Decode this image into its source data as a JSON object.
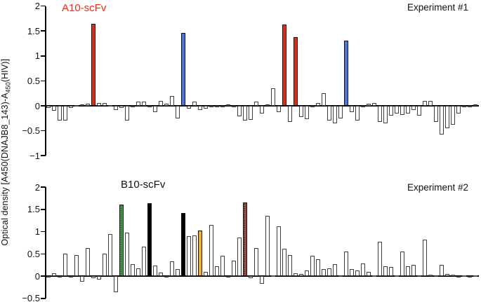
{
  "figure": {
    "ylabel_prefix": "Optical density [A450(DNAJB8_143)-A",
    "ylabel_sub": "450",
    "ylabel_suffix": "(HIV)]"
  },
  "palette": {
    "red": "#e8290c",
    "blue": "#4377e6",
    "black": "#000000",
    "orange": "#f4b50a",
    "green_hatch": {
      "fill": "#3b9b45",
      "dot": "#1c5222"
    },
    "dark_red_hatch": {
      "fill": "#9c4a42",
      "dot": "#260c09"
    },
    "white_bar_fill": "#ffffff",
    "gray_bar_fill": "#b4b4b4",
    "bar_outline": "#3d3d3d",
    "axis": "#000000",
    "title_red": "#f92a12",
    "text": "#111111"
  },
  "chart_data": [
    {
      "type": "bar",
      "title": "A10-scFv",
      "title_color_key": "title_red",
      "panel_label": "Experiment #1",
      "ylabel": "Optical density [A450(DNAJB8_143)-A450(HIV)]",
      "ylim": [
        -1,
        2
      ],
      "yticks": [
        2,
        1.5,
        1,
        0.5,
        0,
        -0.5,
        -1
      ],
      "grid": false,
      "legend": "none",
      "values": [
        -0.04,
        -0.1,
        -0.3,
        -0.3,
        -0.04,
        0.01,
        0.03,
        0.04,
        1.65,
        0.05,
        0.05,
        0.02,
        -0.09,
        -0.04,
        -0.29,
        -0.03,
        0.08,
        0.08,
        -0.03,
        -0.13,
        0.1,
        0.04,
        0.2,
        -0.25,
        1.46,
        -0.06,
        0.09,
        -0.09,
        -0.06,
        -0.02,
        -0.02,
        -0.01,
        0.03,
        -0.02,
        -0.21,
        -0.3,
        -0.28,
        0.09,
        -0.16,
        0.03,
        0.35,
        -0.12,
        1.63,
        -0.33,
        1.38,
        -0.22,
        -0.27,
        -0.02,
        0.05,
        0.25,
        -0.3,
        -0.35,
        -0.25,
        1.3,
        -0.13,
        -0.3,
        0.0,
        0.04,
        0.05,
        -0.33,
        -0.35,
        -0.2,
        -0.15,
        -0.18,
        -0.15,
        -0.08,
        -0.2,
        0.1,
        0.1,
        -0.32,
        -0.57,
        -0.45,
        -0.38,
        -0.15,
        -0.03,
        -0.03,
        0.03
      ],
      "highlighted_bars": {
        "8": "red",
        "24": "blue",
        "42": "red",
        "44": "red",
        "53": "blue"
      },
      "gray_bars": [
        57
      ]
    },
    {
      "type": "bar",
      "title": "B10-scFv",
      "title_color_key": "text",
      "panel_label": "Experiment #2",
      "ylabel": "Optical density [A450(DNAJB8_143)-A450(HIV)]",
      "ylim": [
        -0.5,
        2
      ],
      "yticks": [
        2,
        1.5,
        1,
        0.5,
        0,
        -0.5
      ],
      "grid": false,
      "legend": "none",
      "values": [
        -0.02,
        0.06,
        -0.03,
        0.5,
        -0.03,
        0.47,
        -0.13,
        0.63,
        -0.04,
        -0.08,
        0.5,
        0.95,
        -0.37,
        1.61,
        0.97,
        0.27,
        0.17,
        0.66,
        1.64,
        0.24,
        0.08,
        -0.02,
        0.33,
        0.15,
        1.42,
        0.9,
        0.92,
        1.03,
        0.1,
        1.15,
        0.22,
        0.45,
        -0.02,
        0.35,
        0.87,
        1.65,
        -0.04,
        0.63,
        -0.18,
        1.35,
        0.02,
        1.12,
        0.62,
        0.48,
        0.07,
        0.05,
        0.12,
        0.45,
        0.38,
        0.15,
        0.18,
        0.27,
        0.02,
        0.55,
        0.15,
        0.12,
        0.28,
        0.1,
        0.02,
        0.77,
        0.22,
        0.2,
        0.02,
        0.55,
        0.22,
        0.25,
        0.02,
        0.82,
        0.03,
        0.02,
        0.25,
        0.05,
        0.03,
        -0.02,
        0.02,
        -0.02,
        0.01
      ],
      "highlighted_bars": {
        "13": "green_hatch",
        "18": "black",
        "24": "black",
        "27": "orange",
        "35": "dark_red_hatch"
      },
      "gray_bars": [
        40,
        58,
        62,
        68,
        72,
        74,
        76
      ]
    }
  ]
}
